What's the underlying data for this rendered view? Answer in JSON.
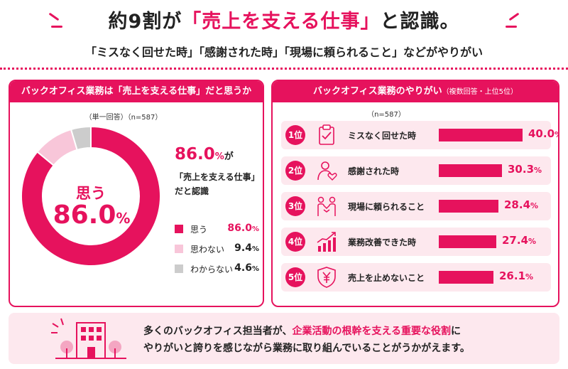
{
  "header": {
    "title_pre": "約9割が",
    "title_hl": "「売上を支える仕事」",
    "title_post": "と認識。",
    "subtitle": "「ミスなく回せた時」「感謝された時」「現場に頼られること」などがやりがい"
  },
  "left": {
    "heading": "バックオフィス業務は「売上を支える仕事」だと思うか",
    "note": "（単一回答）（n=587）",
    "center_label": "思う",
    "center_value": "86.0",
    "pct": "%",
    "headline_value": "86.0",
    "headline_suffix": "が",
    "quote_line1": "「売上を支える仕事」",
    "quote_line2": "だと認識"
  },
  "right": {
    "heading": "バックオフィス業務のやりがい",
    "heading_small": "（複数回答・上位5位）",
    "note": "（n=587）",
    "pct": "%"
  },
  "colors": {
    "accent": "#e6125d",
    "light_pink": "#f8c6d9",
    "gray": "#cccccc",
    "row_bg": "#fde8ee"
  },
  "chart_data": [
    {
      "type": "pie",
      "title": "バックオフィス業務は「売上を支える仕事」だと思うか",
      "categories": [
        "思う",
        "思わない",
        "わからない"
      ],
      "values": [
        86.0,
        9.4,
        4.6
      ],
      "value_labels": [
        "86.0",
        "9.4",
        "4.6"
      ],
      "colors": [
        "#e6125d",
        "#f8c6d9",
        "#cccccc"
      ],
      "n": "n=587"
    },
    {
      "type": "bar",
      "title": "バックオフィス業務のやりがい",
      "ranks": [
        "1位",
        "2位",
        "3位",
        "4位",
        "5位"
      ],
      "categories": [
        "ミスなく回せた時",
        "感謝された時",
        "現場に頼られること",
        "業務改善できた時",
        "売上を止めないこと"
      ],
      "values": [
        40.0,
        30.3,
        28.4,
        27.4,
        26.1
      ],
      "value_labels": [
        "40.0",
        "30.3",
        "28.4",
        "27.4",
        "26.1"
      ],
      "icons": [
        "clipboard-check-icon",
        "person-heart-icon",
        "handshake-icon",
        "growth-chart-icon",
        "yen-shield-icon"
      ],
      "n": "n=587"
    }
  ],
  "footer": {
    "line1_pre": "多くのバックオフィス担当者が、",
    "line1_hl": "企業活動の根幹を支える重要な役割",
    "line1_post": "に",
    "line2": "やりがいと誇りを感じながら業務に取り組んでいることがうかがえます。"
  }
}
